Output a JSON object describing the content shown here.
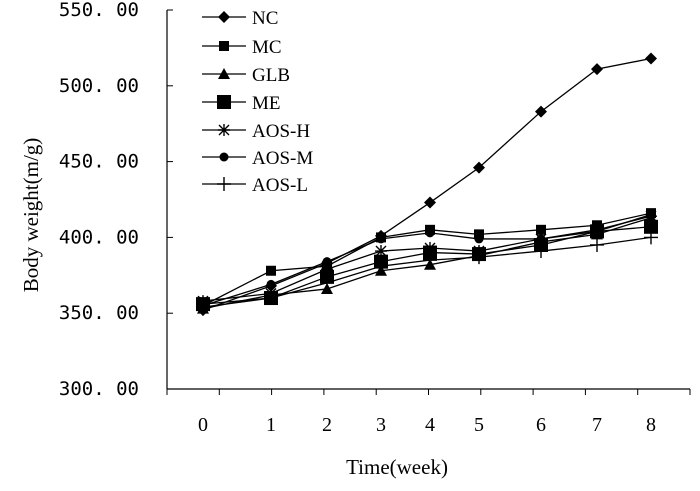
{
  "chart_data": {
    "type": "line",
    "title": "",
    "xlabel": "Time(week)",
    "ylabel": "Body weight(m/g)",
    "ylim": [
      300,
      550
    ],
    "yticks": [
      "300. 00",
      "350. 00",
      "400. 00",
      "450. 00",
      "500. 00",
      "550. 00"
    ],
    "categories": [
      "0",
      "1",
      "2",
      "3",
      "4",
      "5",
      "6",
      "7",
      "8"
    ],
    "legend_position": "top-left",
    "grid": false,
    "series": [
      {
        "name": "NC",
        "marker": "diamond",
        "values": [
          352,
          368,
          383,
          401,
          423,
          446,
          483,
          511,
          518
        ]
      },
      {
        "name": "MC",
        "marker": "square-small",
        "values": [
          355,
          378,
          381,
          400,
          405,
          402,
          405,
          408,
          416
        ]
      },
      {
        "name": "GLB",
        "marker": "triangle",
        "values": [
          353,
          362,
          366,
          378,
          382,
          388,
          397,
          402,
          413
        ]
      },
      {
        "name": "ME",
        "marker": "square-large",
        "values": [
          356,
          360,
          374,
          384,
          390,
          389,
          395,
          404,
          407
        ]
      },
      {
        "name": "AOS-H",
        "marker": "star",
        "values": [
          358,
          363,
          379,
          391,
          393,
          391,
          399,
          405,
          414
        ]
      },
      {
        "name": "AOS-M",
        "marker": "circle",
        "values": [
          355,
          369,
          384,
          399,
          403,
          399,
          399,
          404,
          415
        ]
      },
      {
        "name": "AOS-L",
        "marker": "plus",
        "values": [
          354,
          360,
          370,
          381,
          385,
          387,
          391,
          395,
          400
        ]
      }
    ]
  }
}
